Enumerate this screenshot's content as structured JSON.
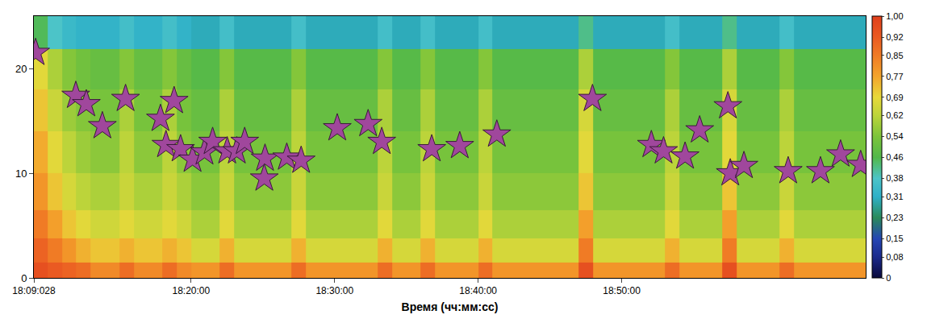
{
  "chart_data": {
    "type": "heatmap",
    "x_label": "Время (чч:мм:сс)",
    "xlim": [
      "18:09:02.8",
      "19:07:00"
    ],
    "xticks": [
      {
        "value": "18:09:02.8",
        "label": "18:09:028"
      },
      "18:20:00",
      "18:30:00",
      "18:40:00",
      "18:50:00"
    ],
    "ylim": [
      0,
      25
    ],
    "yticks": [
      0,
      10,
      20
    ],
    "heatmap": {
      "x": [
        "18:09:30",
        "18:10:30",
        "18:11:30",
        "18:12:30",
        "18:13:30",
        "18:14:30",
        "18:15:30",
        "18:16:30",
        "18:17:30",
        "18:18:30",
        "18:19:30",
        "18:20:30",
        "18:21:30",
        "18:22:30",
        "18:23:30",
        "18:24:30",
        "18:25:30",
        "18:26:30",
        "18:27:30",
        "18:28:30",
        "18:29:30",
        "18:30:30",
        "18:31:30",
        "18:32:30",
        "18:33:30",
        "18:34:30",
        "18:35:30",
        "18:36:30",
        "18:37:30",
        "18:38:30",
        "18:39:30",
        "18:40:30",
        "18:41:30",
        "18:42:30",
        "18:43:30",
        "18:44:30",
        "18:45:30",
        "18:46:30",
        "18:47:30",
        "18:48:30",
        "18:49:30",
        "18:50:30",
        "18:51:30",
        "18:52:30",
        "18:53:30",
        "18:54:30",
        "18:55:30",
        "18:56:30",
        "18:57:30",
        "18:58:30",
        "18:59:30",
        "19:00:30",
        "19:01:30",
        "19:02:30",
        "19:03:30",
        "19:04:30",
        "19:05:30",
        "19:06:30"
      ],
      "y": [
        0.5,
        2.5,
        5,
        8,
        12,
        16,
        20,
        23.75
      ],
      "z": [
        [
          0.95,
          0.92,
          0.9,
          0.88,
          0.82,
          0.82,
          0.88,
          0.82,
          0.82,
          0.88,
          0.82,
          0.8,
          0.8,
          0.88,
          0.8,
          0.8,
          0.8,
          0.8,
          0.88,
          0.8,
          0.8,
          0.8,
          0.8,
          0.8,
          0.88,
          0.8,
          0.8,
          0.88,
          0.8,
          0.8,
          0.8,
          0.88,
          0.8,
          0.8,
          0.8,
          0.8,
          0.8,
          0.8,
          0.95,
          0.8,
          0.8,
          0.8,
          0.8,
          0.8,
          0.88,
          0.8,
          0.8,
          0.8,
          0.95,
          0.8,
          0.8,
          0.8,
          0.88,
          0.8,
          0.8,
          0.8,
          0.8,
          0.8
        ],
        [
          0.9,
          0.85,
          0.8,
          0.75,
          0.72,
          0.72,
          0.75,
          0.72,
          0.72,
          0.75,
          0.72,
          0.66,
          0.66,
          0.75,
          0.66,
          0.66,
          0.66,
          0.66,
          0.75,
          0.66,
          0.66,
          0.66,
          0.66,
          0.66,
          0.75,
          0.66,
          0.66,
          0.75,
          0.66,
          0.66,
          0.66,
          0.75,
          0.66,
          0.66,
          0.66,
          0.66,
          0.66,
          0.66,
          0.85,
          0.66,
          0.66,
          0.66,
          0.66,
          0.66,
          0.75,
          0.66,
          0.66,
          0.66,
          0.85,
          0.66,
          0.66,
          0.66,
          0.75,
          0.66,
          0.66,
          0.66,
          0.66,
          0.66
        ],
        [
          0.85,
          0.78,
          0.72,
          0.68,
          0.65,
          0.65,
          0.68,
          0.65,
          0.65,
          0.68,
          0.65,
          0.6,
          0.6,
          0.68,
          0.6,
          0.6,
          0.6,
          0.6,
          0.68,
          0.6,
          0.6,
          0.6,
          0.6,
          0.6,
          0.68,
          0.6,
          0.6,
          0.68,
          0.6,
          0.6,
          0.6,
          0.68,
          0.6,
          0.6,
          0.6,
          0.6,
          0.6,
          0.6,
          0.78,
          0.6,
          0.6,
          0.6,
          0.6,
          0.6,
          0.68,
          0.6,
          0.6,
          0.6,
          0.78,
          0.6,
          0.6,
          0.6,
          0.68,
          0.6,
          0.6,
          0.6,
          0.6,
          0.6
        ],
        [
          0.8,
          0.72,
          0.66,
          0.62,
          0.6,
          0.6,
          0.64,
          0.6,
          0.6,
          0.64,
          0.6,
          0.56,
          0.56,
          0.64,
          0.56,
          0.56,
          0.56,
          0.56,
          0.64,
          0.56,
          0.56,
          0.56,
          0.56,
          0.56,
          0.64,
          0.56,
          0.56,
          0.64,
          0.56,
          0.56,
          0.56,
          0.64,
          0.56,
          0.56,
          0.56,
          0.56,
          0.56,
          0.56,
          0.72,
          0.56,
          0.56,
          0.56,
          0.56,
          0.56,
          0.64,
          0.56,
          0.56,
          0.56,
          0.72,
          0.56,
          0.56,
          0.56,
          0.64,
          0.56,
          0.56,
          0.56,
          0.56,
          0.56
        ],
        [
          0.76,
          0.68,
          0.62,
          0.58,
          0.56,
          0.56,
          0.62,
          0.56,
          0.56,
          0.62,
          0.56,
          0.53,
          0.53,
          0.62,
          0.53,
          0.53,
          0.53,
          0.53,
          0.62,
          0.53,
          0.53,
          0.53,
          0.53,
          0.53,
          0.62,
          0.53,
          0.53,
          0.62,
          0.53,
          0.53,
          0.53,
          0.62,
          0.53,
          0.53,
          0.53,
          0.53,
          0.53,
          0.53,
          0.68,
          0.53,
          0.53,
          0.53,
          0.53,
          0.53,
          0.62,
          0.53,
          0.53,
          0.53,
          0.68,
          0.53,
          0.53,
          0.53,
          0.62,
          0.53,
          0.53,
          0.53,
          0.53,
          0.53
        ],
        [
          0.72,
          0.64,
          0.58,
          0.55,
          0.53,
          0.53,
          0.6,
          0.53,
          0.53,
          0.6,
          0.53,
          0.5,
          0.5,
          0.6,
          0.5,
          0.5,
          0.5,
          0.5,
          0.6,
          0.5,
          0.5,
          0.5,
          0.5,
          0.5,
          0.6,
          0.5,
          0.5,
          0.6,
          0.5,
          0.5,
          0.5,
          0.6,
          0.5,
          0.5,
          0.5,
          0.5,
          0.5,
          0.5,
          0.66,
          0.5,
          0.5,
          0.5,
          0.5,
          0.5,
          0.6,
          0.5,
          0.5,
          0.5,
          0.66,
          0.5,
          0.5,
          0.5,
          0.6,
          0.5,
          0.5,
          0.5,
          0.5,
          0.5
        ],
        [
          0.68,
          0.6,
          0.55,
          0.52,
          0.5,
          0.5,
          0.55,
          0.5,
          0.5,
          0.55,
          0.5,
          0.47,
          0.47,
          0.55,
          0.47,
          0.47,
          0.47,
          0.47,
          0.55,
          0.47,
          0.47,
          0.47,
          0.47,
          0.47,
          0.55,
          0.47,
          0.47,
          0.55,
          0.47,
          0.47,
          0.47,
          0.55,
          0.47,
          0.47,
          0.47,
          0.47,
          0.47,
          0.47,
          0.6,
          0.47,
          0.47,
          0.47,
          0.47,
          0.47,
          0.55,
          0.47,
          0.47,
          0.47,
          0.6,
          0.47,
          0.47,
          0.47,
          0.55,
          0.47,
          0.47,
          0.47,
          0.47,
          0.47
        ],
        [
          0.45,
          0.38,
          0.34,
          0.32,
          0.32,
          0.32,
          0.36,
          0.32,
          0.32,
          0.36,
          0.32,
          0.3,
          0.3,
          0.36,
          0.3,
          0.3,
          0.3,
          0.3,
          0.36,
          0.3,
          0.3,
          0.3,
          0.3,
          0.3,
          0.36,
          0.3,
          0.3,
          0.36,
          0.3,
          0.3,
          0.3,
          0.36,
          0.3,
          0.3,
          0.3,
          0.3,
          0.3,
          0.3,
          0.42,
          0.3,
          0.3,
          0.3,
          0.3,
          0.3,
          0.36,
          0.3,
          0.3,
          0.3,
          0.42,
          0.3,
          0.3,
          0.3,
          0.36,
          0.3,
          0.3,
          0.3,
          0.3,
          0.3
        ]
      ]
    },
    "colorbar": {
      "range": [
        0,
        1
      ],
      "ticks": [
        0,
        {
          "value": 0.08,
          "label": "0,08"
        },
        {
          "value": 0.15,
          "label": "0,15"
        },
        {
          "value": 0.23,
          "label": "0,23"
        },
        {
          "value": 0.31,
          "label": "0,31"
        },
        {
          "value": 0.38,
          "label": "0,38"
        },
        {
          "value": 0.46,
          "label": "0,46"
        },
        {
          "value": 0.54,
          "label": "0,54"
        },
        {
          "value": 0.62,
          "label": "0,62"
        },
        {
          "value": 0.69,
          "label": "0,69"
        },
        {
          "value": 0.77,
          "label": "0,77"
        },
        {
          "value": 0.85,
          "label": "0,85"
        },
        {
          "value": 0.92,
          "label": "0,92"
        },
        {
          "value": 1.0,
          "label": "1,00"
        }
      ]
    },
    "series": [
      {
        "type": "scatter",
        "marker": "star",
        "color": "#a0479c",
        "x": [
          "18:09:10",
          "18:11:58",
          "18:12:42",
          "18:13:49",
          "18:15:26",
          "18:17:52",
          "18:18:49",
          "18:18:15",
          "18:19:16",
          "18:20:06",
          "18:20:56",
          "18:21:30",
          "18:22:31",
          "18:23:11",
          "18:23:44",
          "18:25:09",
          "18:25:06",
          "18:26:40",
          "18:27:40",
          "18:30:11",
          "18:32:20",
          "18:33:17",
          "18:36:46",
          "18:38:43",
          "18:41:18",
          "18:47:58",
          "18:52:04",
          "18:52:55",
          "18:54:25",
          "18:55:26",
          "18:57:24",
          "18:57:34",
          "18:58:31",
          "19:01:36",
          "19:03:51",
          "19:05:15",
          "19:06:39"
        ],
        "values": [
          21.5,
          17.4,
          16.6,
          14.5,
          17.1,
          15.2,
          16.9,
          12.7,
          12.3,
          11.3,
          12.0,
          13.0,
          12.1,
          12.1,
          13.0,
          11.4,
          9.5,
          11.5,
          11.2,
          14.3,
          14.7,
          13.0,
          12.3,
          12.6,
          13.7,
          17.1,
          12.7,
          12.1,
          11.6,
          14.1,
          16.4,
          10.0,
          10.7,
          10.2,
          10.2,
          11.8,
          10.8
        ]
      }
    ]
  }
}
